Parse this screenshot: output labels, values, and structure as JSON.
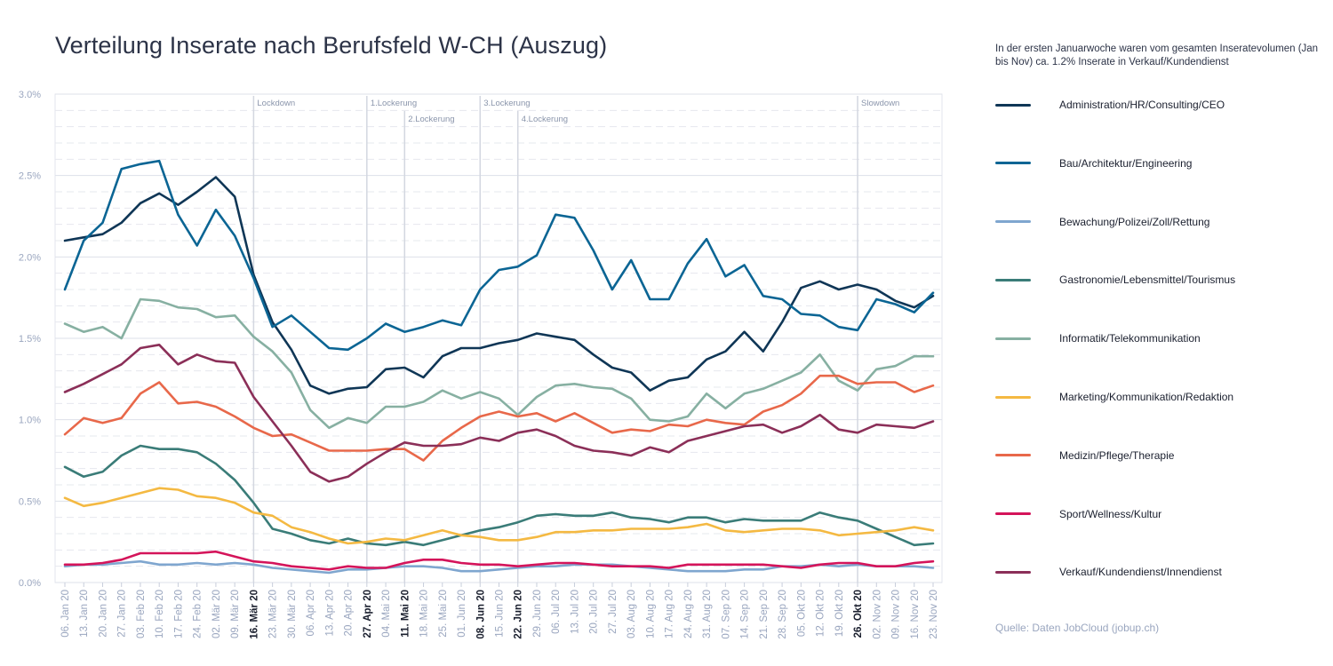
{
  "title": "Verteilung Inserate nach Berufsfeld W-CH (Auszug)",
  "note": "In der ersten Januarwoche waren vom gesamten Inseratevolumen (Jan bis Nov) ca. 1.2% Inserate in Verkauf/Kundendienst",
  "source": "Quelle: Daten JobCloud (jobup.ch)",
  "chart_data": {
    "type": "line",
    "title": "Verteilung Inserate nach Berufsfeld W-CH (Auszug)",
    "ylim": [
      0,
      3.0
    ],
    "y_ticks": [
      {
        "value": 0,
        "label": "0.0%"
      },
      {
        "value": 0.5,
        "label": "0.5%"
      },
      {
        "value": 1.0,
        "label": "1.0%"
      },
      {
        "value": 1.5,
        "label": "1.5%"
      },
      {
        "value": 2.0,
        "label": "2.0%"
      },
      {
        "value": 2.5,
        "label": "2.5%"
      },
      {
        "value": 3.0,
        "label": "3.0%"
      }
    ],
    "grid": true,
    "legend_position": "right",
    "categories": [
      "06. Jan 20",
      "13. Jan 20",
      "20. Jan 20",
      "27. Jan 20",
      "03. Feb 20",
      "10. Feb 20",
      "17. Feb 20",
      "24. Feb 20",
      "02. Mär 20",
      "09. Mär 20",
      "16. Mär 20",
      "23. Mär 20",
      "30. Mär 20",
      "06. Apr 20",
      "13. Apr 20",
      "20. Apr 20",
      "27. Apr 20",
      "04. Mai 20",
      "11. Mai 20",
      "18. Mai 20",
      "25. Mai 20",
      "01. Jun 20",
      "08. Jun 20",
      "15. Jun 20",
      "22. Jun 20",
      "29. Jun 20",
      "06. Jul 20",
      "13. Jul 20",
      "20. Jul 20",
      "27. Jul 20",
      "03. Aug 20",
      "10. Aug 20",
      "17. Aug 20",
      "24. Aug 20",
      "31. Aug 20",
      "07. Sep 20",
      "14. Sep 20",
      "21. Sep 20",
      "28. Sep 20",
      "05. Okt 20",
      "12. Okt 20",
      "19. Okt 20",
      "26. Okt 20",
      "02. Nov 20",
      "09. Nov 20",
      "16. Nov 20",
      "23. Nov 20"
    ],
    "bold_categories": [
      "16. Mär 20",
      "27. Apr 20",
      "11. Mai 20",
      "08. Jun 20",
      "22. Jun 20",
      "26. Okt 20"
    ],
    "annotations": [
      {
        "category": "16. Mär 20",
        "label": "Lockdown",
        "row": 0
      },
      {
        "category": "27. Apr 20",
        "label": "1.Lockerung",
        "row": 0
      },
      {
        "category": "11. Mai 20",
        "label": "2.Lockerung",
        "row": 1
      },
      {
        "category": "08. Jun 20",
        "label": "3.Lockerung",
        "row": 0
      },
      {
        "category": "22. Jun 20",
        "label": "4.Lockerung",
        "row": 1
      },
      {
        "category": "26. Okt 20",
        "label": "Slowdown",
        "row": 0
      }
    ],
    "series": [
      {
        "name": "Administration/HR/Consulting/CEO",
        "color": "#0f3656",
        "values": [
          2.1,
          2.12,
          2.14,
          2.21,
          2.33,
          2.39,
          2.32,
          2.4,
          2.49,
          2.37,
          1.89,
          1.6,
          1.43,
          1.21,
          1.16,
          1.19,
          1.2,
          1.31,
          1.32,
          1.26,
          1.39,
          1.44,
          1.44,
          1.47,
          1.49,
          1.53,
          1.51,
          1.49,
          1.4,
          1.32,
          1.29,
          1.18,
          1.24,
          1.26,
          1.37,
          1.42,
          1.54,
          1.42,
          1.6,
          1.81,
          1.85,
          1.8,
          1.83,
          1.8,
          1.73,
          1.69,
          1.76
        ]
      },
      {
        "name": "Bau/Architektur/Engineering",
        "color": "#0b6594",
        "values": [
          1.8,
          2.1,
          2.21,
          2.54,
          2.57,
          2.59,
          2.26,
          2.07,
          2.29,
          2.13,
          1.87,
          1.57,
          1.64,
          1.54,
          1.44,
          1.43,
          1.5,
          1.59,
          1.54,
          1.57,
          1.61,
          1.58,
          1.8,
          1.92,
          1.94,
          2.01,
          2.26,
          2.24,
          2.04,
          1.8,
          1.98,
          1.74,
          1.74,
          1.96,
          2.11,
          1.88,
          1.95,
          1.76,
          1.74,
          1.65,
          1.64,
          1.57,
          1.55,
          1.74,
          1.71,
          1.66,
          1.78
        ]
      },
      {
        "name": "Bewachung/Polizei/Zoll/Rettung",
        "color": "#7fa6cf",
        "values": [
          0.1,
          0.11,
          0.11,
          0.12,
          0.13,
          0.11,
          0.11,
          0.12,
          0.11,
          0.12,
          0.11,
          0.09,
          0.08,
          0.07,
          0.06,
          0.08,
          0.08,
          0.09,
          0.1,
          0.1,
          0.09,
          0.07,
          0.07,
          0.08,
          0.09,
          0.1,
          0.1,
          0.11,
          0.11,
          0.11,
          0.1,
          0.09,
          0.08,
          0.07,
          0.07,
          0.07,
          0.08,
          0.08,
          0.1,
          0.1,
          0.11,
          0.1,
          0.11,
          0.1,
          0.1,
          0.1,
          0.09
        ]
      },
      {
        "name": "Gastronomie/Lebensmittel/Tourismus",
        "color": "#3a7c78",
        "values": [
          0.71,
          0.65,
          0.68,
          0.78,
          0.84,
          0.82,
          0.82,
          0.8,
          0.73,
          0.63,
          0.49,
          0.33,
          0.3,
          0.26,
          0.24,
          0.27,
          0.24,
          0.23,
          0.25,
          0.23,
          0.26,
          0.29,
          0.32,
          0.34,
          0.37,
          0.41,
          0.42,
          0.41,
          0.41,
          0.43,
          0.4,
          0.39,
          0.37,
          0.4,
          0.4,
          0.37,
          0.39,
          0.38,
          0.38,
          0.38,
          0.43,
          0.4,
          0.38,
          0.33,
          0.28,
          0.23,
          0.24
        ]
      },
      {
        "name": "Informatik/Telekommunikation",
        "color": "#87b0a2",
        "values": [
          1.59,
          1.54,
          1.57,
          1.5,
          1.74,
          1.73,
          1.69,
          1.68,
          1.63,
          1.64,
          1.51,
          1.42,
          1.29,
          1.06,
          0.95,
          1.01,
          0.98,
          1.08,
          1.08,
          1.11,
          1.18,
          1.13,
          1.17,
          1.13,
          1.03,
          1.14,
          1.21,
          1.22,
          1.2,
          1.19,
          1.13,
          1.0,
          0.99,
          1.02,
          1.16,
          1.07,
          1.16,
          1.19,
          1.24,
          1.29,
          1.4,
          1.24,
          1.18,
          1.31,
          1.33,
          1.39,
          1.39
        ]
      },
      {
        "name": "Marketing/Kommunikation/Redaktion",
        "color": "#f4b942",
        "values": [
          0.52,
          0.47,
          0.49,
          0.52,
          0.55,
          0.58,
          0.57,
          0.53,
          0.52,
          0.49,
          0.43,
          0.41,
          0.34,
          0.31,
          0.27,
          0.24,
          0.25,
          0.27,
          0.26,
          0.29,
          0.32,
          0.29,
          0.28,
          0.26,
          0.26,
          0.28,
          0.31,
          0.31,
          0.32,
          0.32,
          0.33,
          0.33,
          0.33,
          0.34,
          0.36,
          0.32,
          0.31,
          0.32,
          0.33,
          0.33,
          0.32,
          0.29,
          0.3,
          0.31,
          0.32,
          0.34,
          0.32
        ]
      },
      {
        "name": "Medizin/Pflege/Therapie",
        "color": "#e8684a",
        "values": [
          0.91,
          1.01,
          0.98,
          1.01,
          1.16,
          1.23,
          1.1,
          1.11,
          1.08,
          1.02,
          0.95,
          0.9,
          0.91,
          0.86,
          0.81,
          0.81,
          0.81,
          0.82,
          0.82,
          0.75,
          0.87,
          0.95,
          1.02,
          1.05,
          1.02,
          1.04,
          0.99,
          1.04,
          0.98,
          0.92,
          0.94,
          0.93,
          0.97,
          0.96,
          1.0,
          0.98,
          0.97,
          1.05,
          1.09,
          1.16,
          1.27,
          1.27,
          1.22,
          1.23,
          1.23,
          1.17,
          1.21
        ]
      },
      {
        "name": "Sport/Wellness/Kultur",
        "color": "#d4145a",
        "values": [
          0.11,
          0.11,
          0.12,
          0.14,
          0.18,
          0.18,
          0.18,
          0.18,
          0.19,
          0.16,
          0.13,
          0.12,
          0.1,
          0.09,
          0.08,
          0.1,
          0.09,
          0.09,
          0.12,
          0.14,
          0.14,
          0.12,
          0.11,
          0.11,
          0.1,
          0.11,
          0.12,
          0.12,
          0.11,
          0.1,
          0.1,
          0.1,
          0.09,
          0.11,
          0.11,
          0.11,
          0.11,
          0.11,
          0.1,
          0.09,
          0.11,
          0.12,
          0.12,
          0.1,
          0.1,
          0.12,
          0.13
        ]
      },
      {
        "name": "Verkauf/Kundendienst/Innendienst",
        "color": "#8b2f58",
        "values": [
          1.17,
          1.22,
          1.28,
          1.34,
          1.44,
          1.46,
          1.34,
          1.4,
          1.36,
          1.35,
          1.14,
          0.99,
          0.84,
          0.68,
          0.62,
          0.65,
          0.73,
          0.8,
          0.86,
          0.84,
          0.84,
          0.85,
          0.89,
          0.87,
          0.92,
          0.94,
          0.9,
          0.84,
          0.81,
          0.8,
          0.78,
          0.83,
          0.8,
          0.87,
          0.9,
          0.93,
          0.96,
          0.97,
          0.92,
          0.96,
          1.03,
          0.94,
          0.92,
          0.97,
          0.96,
          0.95,
          0.99
        ]
      }
    ]
  }
}
